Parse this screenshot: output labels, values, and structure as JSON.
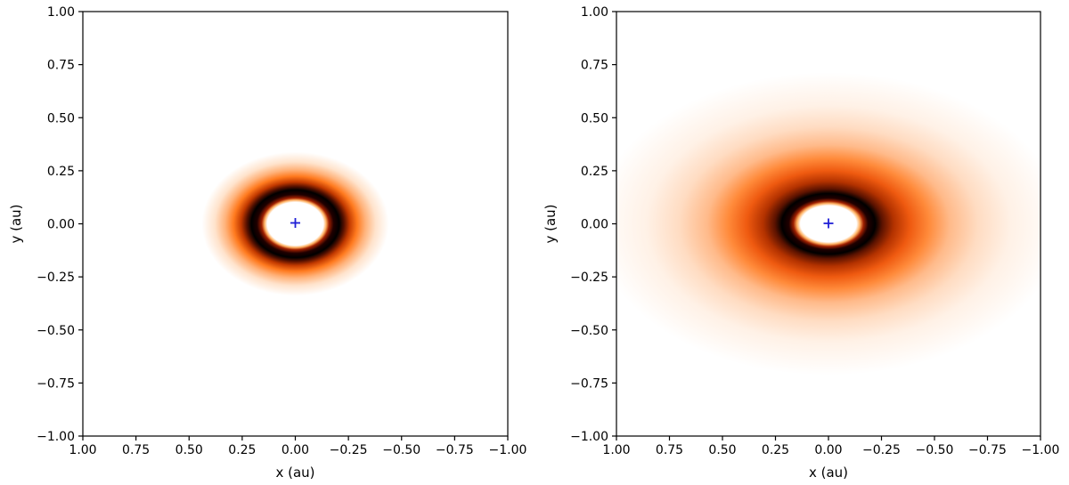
{
  "chart_data": [
    {
      "type": "heatmap",
      "title": "",
      "xlabel": "x (au)",
      "ylabel": "y (au)",
      "xlim": [
        1.0,
        -1.0
      ],
      "ylim": [
        -1.0,
        1.0
      ],
      "x_ticks": [
        "1.00",
        "0.75",
        "0.50",
        "0.25",
        "0.00",
        "−0.25",
        "−0.50",
        "−0.75",
        "−1.00"
      ],
      "y_ticks": [
        "1.00",
        "0.75",
        "0.50",
        "0.25",
        "0.00",
        "−0.25",
        "−0.50",
        "−0.75",
        "−1.00"
      ],
      "colormap": "gist_heat_r",
      "grid": false,
      "marker": {
        "symbol": "+",
        "x": 0.0,
        "y": 0.0,
        "color": "#1f1fd6"
      },
      "emission": {
        "inner_hole": [
          0.145,
          0.11
        ],
        "peak": [
          0.2,
          0.15
        ],
        "outer_extent": [
          0.44,
          0.34
        ],
        "decay": 1.6
      }
    },
    {
      "type": "heatmap",
      "title": "",
      "xlabel": "x (au)",
      "ylabel": "y (au)",
      "xlim": [
        1.0,
        -1.0
      ],
      "ylim": [
        -1.0,
        1.0
      ],
      "x_ticks": [
        "1.00",
        "0.75",
        "0.50",
        "0.25",
        "0.00",
        "−0.25",
        "−0.50",
        "−0.75",
        "−1.00"
      ],
      "y_ticks": [
        "1.00",
        "0.75",
        "0.50",
        "0.25",
        "0.00",
        "−0.25",
        "−0.50",
        "−0.75",
        "−1.00"
      ],
      "colormap": "gist_heat_r",
      "grid": false,
      "marker": {
        "symbol": "+",
        "x": 0.0,
        "y": 0.0,
        "color": "#1f1fd6"
      },
      "emission": {
        "inner_hole": [
          0.145,
          0.11
        ],
        "peak": [
          0.2,
          0.14
        ],
        "outer_extent": [
          1.05,
          0.7
        ],
        "decay": 0.9
      }
    }
  ]
}
